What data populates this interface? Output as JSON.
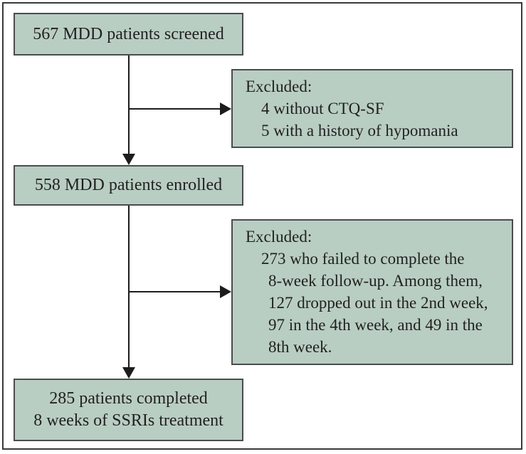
{
  "colors": {
    "box_fill": "#b8cec3",
    "box_border": "#4a4c4e",
    "frame_border": "#3a3a3a",
    "line_color": "#1c1c1c",
    "text_color": "#231f20",
    "background": "#ffffff"
  },
  "flowchart": {
    "screened_box": {
      "label": "567 MDD patients screened"
    },
    "excluded_box_1": {
      "heading": "Excluded:",
      "lines": [
        "4 without CTQ-SF",
        "5 with a history of hypomania"
      ]
    },
    "enrolled_box": {
      "label": "558 MDD patients enrolled"
    },
    "excluded_box_2": {
      "heading": "Excluded:",
      "lines": [
        "273 who failed to complete the",
        "8-week follow-up. Among them,",
        "127 dropped out in the 2nd week,",
        "97 in the 4th week, and 49 in the",
        "8th week."
      ]
    },
    "completed_box": {
      "lines": [
        "285 patients completed",
        "8 weeks of SSRIs treatment"
      ]
    }
  }
}
